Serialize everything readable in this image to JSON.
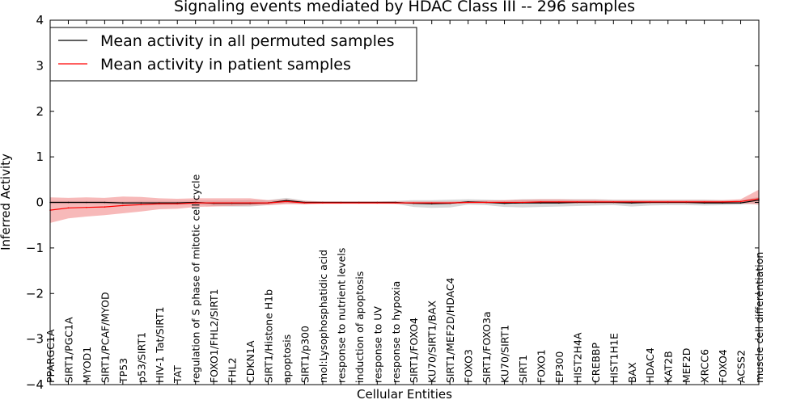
{
  "chart_data": {
    "type": "line",
    "title": "Signaling events mediated by HDAC Class III -- 296 samples",
    "xlabel": "Cellular Entities",
    "ylabel": "Inferred Activity",
    "ylim": [
      -4,
      4
    ],
    "yticks": [
      -4,
      -3,
      -2,
      -1,
      0,
      1,
      2,
      3,
      4
    ],
    "ytick_labels": [
      "−4",
      "−3",
      "−2",
      "−1",
      "0",
      "1",
      "2",
      "3",
      "4"
    ],
    "legend_position": "top-left",
    "categories": [
      "PPARGC1A",
      "SIRT1/PGC1A",
      "MYOD1",
      "SIRT1/PCAF/MYOD",
      "TP53",
      "p53/SIRT1",
      "HIV-1 Tat/SIRT1",
      "TAT",
      "regulation of S phase of mitotic cell cycle",
      "FOXO1/FHL2/SIRT1",
      "FHL2",
      "CDKN1A",
      "SIRT1/Histone H1b",
      "apoptosis",
      "SIRT1/p300",
      "mol:Lysophosphatidic acid",
      "response to nutrient levels",
      "induction of apoptosis",
      "response to UV",
      "response to hypoxia",
      "SIRT1/FOXO4",
      "KU70/SIRT1/BAX",
      "SIRT1/MEF2D/HDAC4",
      "FOXO3",
      "SIRT1/FOXO3a",
      "KU70/SIRT1",
      "SIRT1",
      "FOXO1",
      "EP300",
      "HIST2H4A",
      "CREBBP",
      "HIST1H1E",
      "BAX",
      "HDAC4",
      "KAT2B",
      "MEF2D",
      "XRCC6",
      "FOXO4",
      "ACSS2",
      "muscle cell differentiation"
    ],
    "series": [
      {
        "name": "Mean activity in all permuted samples",
        "color": "#000000",
        "band_color": "#b0b0b0",
        "values": [
          0.0,
          0.0,
          0.0,
          0.0,
          -0.01,
          -0.01,
          -0.01,
          -0.01,
          0.0,
          -0.02,
          -0.02,
          -0.02,
          -0.01,
          0.04,
          0.0,
          0.0,
          0.0,
          0.0,
          0.0,
          0.0,
          -0.02,
          -0.03,
          -0.02,
          0.01,
          0.0,
          -0.02,
          -0.01,
          -0.01,
          -0.01,
          0.0,
          0.0,
          0.0,
          -0.01,
          0.0,
          0.0,
          0.0,
          -0.01,
          -0.01,
          -0.01,
          0.05
        ],
        "lower": [
          -0.03,
          -0.03,
          -0.03,
          -0.04,
          -0.05,
          -0.06,
          -0.06,
          -0.05,
          -0.05,
          -0.08,
          -0.09,
          -0.09,
          -0.06,
          -0.02,
          -0.04,
          -0.02,
          -0.02,
          -0.02,
          -0.02,
          -0.03,
          -0.1,
          -0.12,
          -0.11,
          -0.05,
          -0.06,
          -0.1,
          -0.11,
          -0.1,
          -0.09,
          -0.08,
          -0.07,
          -0.06,
          -0.09,
          -0.07,
          -0.06,
          -0.06,
          -0.07,
          -0.06,
          -0.05,
          -0.02
        ],
        "upper": [
          0.03,
          0.03,
          0.03,
          0.03,
          0.02,
          0.03,
          0.03,
          0.03,
          0.04,
          0.04,
          0.04,
          0.05,
          0.05,
          0.1,
          0.04,
          0.02,
          0.02,
          0.02,
          0.02,
          0.03,
          0.05,
          0.05,
          0.06,
          0.07,
          0.06,
          0.05,
          0.07,
          0.07,
          0.07,
          0.07,
          0.07,
          0.06,
          0.06,
          0.06,
          0.06,
          0.06,
          0.06,
          0.05,
          0.05,
          0.12
        ]
      },
      {
        "name": "Mean activity in patient samples",
        "color": "#ff0000",
        "band_color": "#f08080",
        "values": [
          -0.17,
          -0.12,
          -0.11,
          -0.1,
          -0.07,
          -0.05,
          -0.03,
          -0.03,
          -0.01,
          -0.01,
          -0.01,
          -0.01,
          -0.01,
          0.02,
          -0.01,
          -0.01,
          -0.01,
          -0.01,
          -0.01,
          -0.01,
          -0.01,
          -0.01,
          -0.01,
          0.0,
          0.0,
          0.0,
          0.0,
          0.01,
          0.01,
          0.01,
          0.01,
          0.01,
          0.01,
          0.01,
          0.01,
          0.01,
          0.01,
          0.01,
          0.02,
          0.08
        ],
        "lower": [
          -0.45,
          -0.35,
          -0.31,
          -0.28,
          -0.24,
          -0.2,
          -0.15,
          -0.14,
          -0.1,
          -0.09,
          -0.08,
          -0.07,
          -0.06,
          -0.04,
          -0.04,
          -0.03,
          -0.03,
          -0.03,
          -0.03,
          -0.03,
          -0.03,
          -0.03,
          -0.03,
          -0.02,
          -0.02,
          -0.02,
          -0.02,
          -0.02,
          -0.02,
          -0.02,
          -0.02,
          -0.02,
          -0.02,
          -0.02,
          -0.02,
          -0.02,
          -0.02,
          -0.02,
          -0.02,
          -0.05
        ],
        "upper": [
          0.11,
          0.1,
          0.11,
          0.1,
          0.13,
          0.12,
          0.09,
          0.08,
          0.09,
          0.09,
          0.09,
          0.09,
          0.05,
          0.07,
          0.03,
          0.02,
          0.02,
          0.02,
          0.02,
          0.02,
          0.02,
          0.02,
          0.02,
          0.03,
          0.04,
          0.05,
          0.06,
          0.07,
          0.07,
          0.06,
          0.06,
          0.05,
          0.05,
          0.05,
          0.05,
          0.05,
          0.05,
          0.05,
          0.07,
          0.28
        ]
      }
    ]
  }
}
